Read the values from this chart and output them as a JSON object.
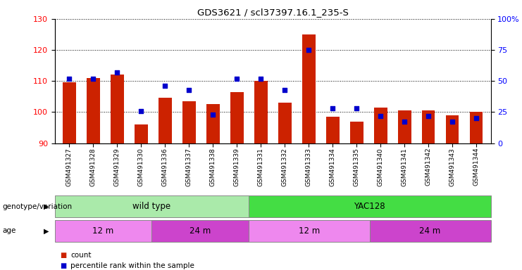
{
  "title": "GDS3621 / scl37397.16.1_235-S",
  "samples": [
    "GSM491327",
    "GSM491328",
    "GSM491329",
    "GSM491330",
    "GSM491336",
    "GSM491337",
    "GSM491338",
    "GSM491339",
    "GSM491331",
    "GSM491332",
    "GSM491333",
    "GSM491334",
    "GSM491335",
    "GSM491340",
    "GSM491341",
    "GSM491342",
    "GSM491343",
    "GSM491344"
  ],
  "counts": [
    109.5,
    111.0,
    112.0,
    96.0,
    104.5,
    103.5,
    102.5,
    106.5,
    110.0,
    103.0,
    125.0,
    98.5,
    97.0,
    101.5,
    100.5,
    100.5,
    99.0,
    100.0
  ],
  "percentiles": [
    52,
    52,
    57,
    26,
    46,
    43,
    23,
    52,
    52,
    43,
    75,
    28,
    28,
    22,
    17,
    22,
    17,
    20
  ],
  "ylim_left": [
    90,
    130
  ],
  "ylim_right": [
    0,
    100
  ],
  "yticks_left": [
    90,
    100,
    110,
    120,
    130
  ],
  "yticks_right": [
    0,
    25,
    50,
    75,
    100
  ],
  "bar_color": "#cc2200",
  "dot_color": "#0000cc",
  "background_color": "#ffffff",
  "genotype_groups": [
    {
      "label": "wild type",
      "start": 0,
      "end": 8,
      "color": "#aaeaaa"
    },
    {
      "label": "YAC128",
      "start": 8,
      "end": 18,
      "color": "#44dd44"
    }
  ],
  "age_groups": [
    {
      "label": "12 m",
      "start": 0,
      "end": 4,
      "color": "#ee88ee"
    },
    {
      "label": "24 m",
      "start": 4,
      "end": 8,
      "color": "#cc44cc"
    },
    {
      "label": "12 m",
      "start": 8,
      "end": 13,
      "color": "#ee88ee"
    },
    {
      "label": "24 m",
      "start": 13,
      "end": 18,
      "color": "#cc44cc"
    }
  ],
  "legend_items": [
    {
      "label": "count",
      "color": "#cc2200"
    },
    {
      "label": "percentile rank within the sample",
      "color": "#0000cc"
    }
  ],
  "bar_width": 0.55,
  "dot_size": 20,
  "label_genotype": "genotype/variation",
  "label_age": "age"
}
